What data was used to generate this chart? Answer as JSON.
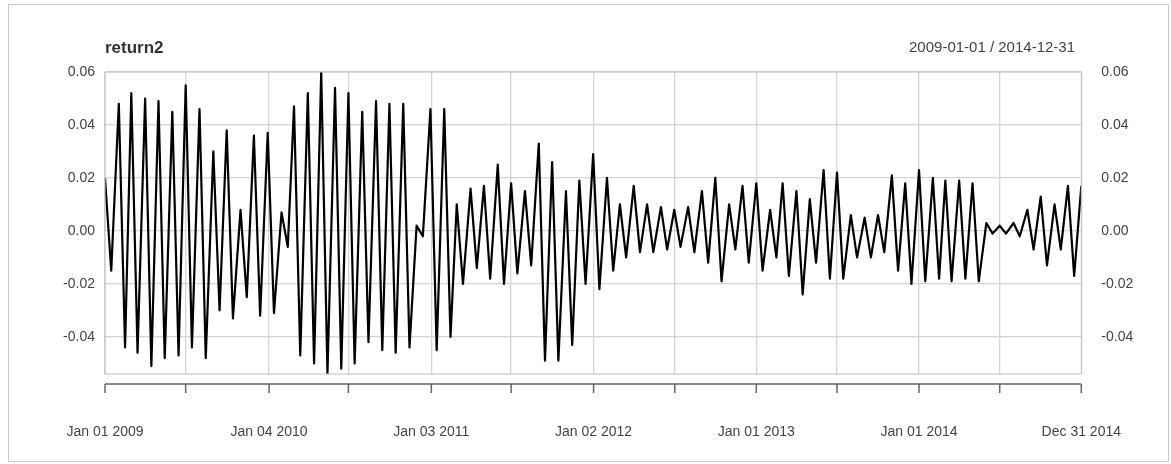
{
  "chart_data": {
    "type": "line",
    "title": "return2",
    "subtitle": "2009-01-01 / 2014-12-31",
    "x": [
      "2009-01-01",
      "2009-01-15",
      "2009-02-01",
      "2009-02-15",
      "2009-03-01",
      "2009-03-15",
      "2009-04-01",
      "2009-04-15",
      "2009-05-01",
      "2009-05-15",
      "2009-06-01",
      "2009-06-15",
      "2009-07-01",
      "2009-07-15",
      "2009-08-01",
      "2009-08-15",
      "2009-09-01",
      "2009-09-15",
      "2009-10-01",
      "2009-10-15",
      "2009-11-01",
      "2009-11-15",
      "2009-12-01",
      "2009-12-15",
      "2010-01-01",
      "2010-01-15",
      "2010-02-01",
      "2010-02-15",
      "2010-03-01",
      "2010-03-15",
      "2010-04-01",
      "2010-04-15",
      "2010-05-01",
      "2010-05-15",
      "2010-06-01",
      "2010-06-15",
      "2010-07-01",
      "2010-07-15",
      "2010-08-01",
      "2010-08-15",
      "2010-09-01",
      "2010-09-15",
      "2010-10-01",
      "2010-10-15",
      "2010-11-01",
      "2010-11-15",
      "2010-12-01",
      "2010-12-15",
      "2011-01-01",
      "2011-01-15",
      "2011-02-01",
      "2011-02-15",
      "2011-03-01",
      "2011-03-15",
      "2011-04-01",
      "2011-04-15",
      "2011-05-01",
      "2011-05-15",
      "2011-06-01",
      "2011-06-15",
      "2011-07-01",
      "2011-07-15",
      "2011-08-01",
      "2011-08-15",
      "2011-09-01",
      "2011-09-15",
      "2011-10-01",
      "2011-10-15",
      "2011-11-01",
      "2011-11-15",
      "2011-12-01",
      "2011-12-15",
      "2012-01-01",
      "2012-01-15",
      "2012-02-01",
      "2012-02-15",
      "2012-03-01",
      "2012-03-15",
      "2012-04-01",
      "2012-04-15",
      "2012-05-01",
      "2012-05-15",
      "2012-06-01",
      "2012-06-15",
      "2012-07-01",
      "2012-07-15",
      "2012-08-01",
      "2012-08-15",
      "2012-09-01",
      "2012-09-15",
      "2012-10-01",
      "2012-10-15",
      "2012-11-01",
      "2012-11-15",
      "2012-12-01",
      "2012-12-15",
      "2013-01-01",
      "2013-01-15",
      "2013-02-01",
      "2013-02-15",
      "2013-03-01",
      "2013-03-15",
      "2013-04-01",
      "2013-04-15",
      "2013-05-01",
      "2013-05-15",
      "2013-06-01",
      "2013-06-15",
      "2013-07-01",
      "2013-07-15",
      "2013-08-01",
      "2013-08-15",
      "2013-09-01",
      "2013-09-15",
      "2013-10-01",
      "2013-10-15",
      "2013-11-01",
      "2013-11-15",
      "2013-12-01",
      "2013-12-15",
      "2014-01-01",
      "2014-01-15",
      "2014-02-01",
      "2014-02-15",
      "2014-03-01",
      "2014-03-15",
      "2014-04-01",
      "2014-04-15",
      "2014-05-01",
      "2014-05-15",
      "2014-06-01",
      "2014-06-15",
      "2014-07-01",
      "2014-07-15",
      "2014-08-01",
      "2014-08-15",
      "2014-09-01",
      "2014-09-15",
      "2014-10-01",
      "2014-10-15",
      "2014-11-01",
      "2014-11-15",
      "2014-12-01",
      "2014-12-15",
      "2014-12-31"
    ],
    "series": [
      {
        "color": "#000000",
        "values": [
          0.02,
          -0.015,
          0.048,
          -0.044,
          0.052,
          -0.046,
          0.05,
          -0.051,
          0.049,
          -0.048,
          0.045,
          -0.047,
          0.055,
          -0.044,
          0.046,
          -0.048,
          0.03,
          -0.03,
          0.038,
          -0.033,
          0.008,
          -0.025,
          0.036,
          -0.032,
          0.037,
          -0.031,
          0.007,
          -0.006,
          0.047,
          -0.047,
          0.052,
          -0.05,
          0.06,
          -0.054,
          0.054,
          -0.052,
          0.052,
          -0.05,
          0.045,
          -0.042,
          0.049,
          -0.045,
          0.048,
          -0.046,
          0.048,
          -0.044,
          0.002,
          -0.002,
          0.046,
          -0.045,
          0.046,
          -0.04,
          0.01,
          -0.02,
          0.016,
          -0.014,
          0.017,
          -0.018,
          0.025,
          -0.02,
          0.018,
          -0.016,
          0.015,
          -0.013,
          0.033,
          -0.049,
          0.026,
          -0.049,
          0.015,
          -0.043,
          0.019,
          -0.02,
          0.029,
          -0.022,
          0.02,
          -0.015,
          0.01,
          -0.01,
          0.017,
          -0.008,
          0.01,
          -0.008,
          0.009,
          -0.007,
          0.008,
          -0.006,
          0.009,
          -0.008,
          0.015,
          -0.012,
          0.02,
          -0.019,
          0.01,
          -0.007,
          0.017,
          -0.012,
          0.018,
          -0.015,
          0.008,
          -0.01,
          0.018,
          -0.017,
          0.015,
          -0.024,
          0.012,
          -0.012,
          0.023,
          -0.018,
          0.022,
          -0.018,
          0.006,
          -0.01,
          0.005,
          -0.01,
          0.006,
          -0.008,
          0.021,
          -0.015,
          0.018,
          -0.02,
          0.023,
          -0.019,
          0.02,
          -0.018,
          0.019,
          -0.019,
          0.019,
          -0.018,
          0.018,
          -0.019,
          0.003,
          -0.001,
          0.002,
          -0.001,
          0.003,
          -0.002,
          0.008,
          -0.007,
          0.013,
          -0.013,
          0.01,
          -0.007,
          0.017,
          -0.017,
          0.017
        ]
      }
    ],
    "xlim": [
      "2009-01-01",
      "2014-12-31"
    ],
    "xticks": [
      {
        "value": "2009-01-01",
        "label": "Jan 01 2009"
      },
      {
        "value": "2009-07-01",
        "label": null
      },
      {
        "value": "2010-01-04",
        "label": "Jan 04 2010"
      },
      {
        "value": "2010-07-01",
        "label": null
      },
      {
        "value": "2011-01-03",
        "label": "Jan 03 2011"
      },
      {
        "value": "2011-07-01",
        "label": null
      },
      {
        "value": "2012-01-02",
        "label": "Jan 02 2012"
      },
      {
        "value": "2012-07-02",
        "label": null
      },
      {
        "value": "2013-01-01",
        "label": "Jan 01 2013"
      },
      {
        "value": "2013-07-01",
        "label": null
      },
      {
        "value": "2014-01-01",
        "label": "Jan 01 2014"
      },
      {
        "value": "2014-07-01",
        "label": null
      },
      {
        "value": "2014-12-31",
        "label": "Dec 31 2014"
      }
    ],
    "ylim": [
      -0.054,
      0.06
    ],
    "yticks": [
      {
        "value": -0.04,
        "label": "-0.04"
      },
      {
        "value": -0.02,
        "label": "-0.02"
      },
      {
        "value": 0,
        "label": "0.00"
      },
      {
        "value": 0.02,
        "label": "0.02"
      },
      {
        "value": 0.04,
        "label": "0.04"
      },
      {
        "value": 0.06,
        "label": "0.06"
      }
    ],
    "y2lim": [
      -0.054,
      0.06
    ],
    "y2ticks": [
      {
        "value": -0.04,
        "label": "-0.04"
      },
      {
        "value": -0.02,
        "label": "-0.02"
      },
      {
        "value": 0,
        "label": "0.00"
      },
      {
        "value": 0.02,
        "label": "0.02"
      },
      {
        "value": 0.04,
        "label": "0.04"
      },
      {
        "value": 0.06,
        "label": "0.06"
      }
    ],
    "grid": true,
    "line_style": "solid",
    "marker": "none"
  }
}
